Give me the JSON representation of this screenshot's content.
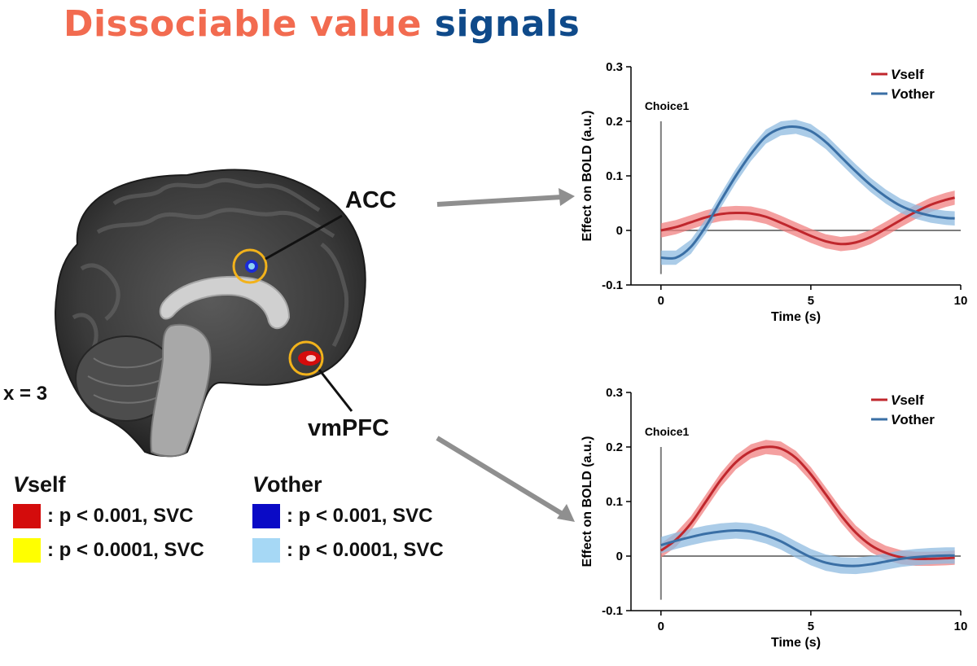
{
  "title": {
    "part1": "Dissociable value",
    "part2": "signals",
    "color1": "#f26b50",
    "color2": "#0f4a8a"
  },
  "brain": {
    "slice_label": "x = 3",
    "regions": [
      {
        "label": "ACC"
      },
      {
        "label": "vmPFC"
      }
    ],
    "highlight_circle_color": "#f2b21b"
  },
  "legend": {
    "groups": [
      {
        "prefix": "V",
        "suffix": "self",
        "rows": [
          {
            "color": "#d40c0c",
            "text": ": p < 0.001, SVC"
          },
          {
            "color": "#ffff00",
            "text": ": p < 0.0001, SVC"
          }
        ]
      },
      {
        "prefix": "V",
        "suffix": "other",
        "rows": [
          {
            "color": "#0a0ac6",
            "text": ": p < 0.001, SVC"
          },
          {
            "color": "#a6d8f5",
            "text": ": p < 0.0001, SVC"
          }
        ]
      }
    ]
  },
  "chart_data": [
    {
      "type": "line",
      "region": "ACC",
      "xlabel": "Time (s)",
      "ylabel": "Effect on BOLD (a.u.)",
      "xlim": [
        -1,
        10
      ],
      "ylim": [
        -0.1,
        0.3
      ],
      "xticks": [
        0,
        5,
        10
      ],
      "yticks": [
        -0.1,
        0,
        0.1,
        0.2,
        0.3
      ],
      "ytick_labels": [
        "-0.1",
        "0",
        "0.1",
        "0.2",
        "0.3"
      ],
      "event": {
        "x": 0,
        "label": "Choice1"
      },
      "legend_position": "top-right",
      "series": [
        {
          "name": "Vself",
          "name_prefix": "V",
          "name_suffix": "self",
          "color": "#c0272d",
          "band_color": "#f08080",
          "x": [
            0,
            0.5,
            1,
            1.5,
            2,
            2.5,
            3,
            3.5,
            4,
            4.5,
            5,
            5.5,
            6,
            6.5,
            7,
            7.5,
            8,
            8.5,
            9,
            9.5,
            9.8
          ],
          "y": [
            0,
            0.006,
            0.015,
            0.024,
            0.03,
            0.032,
            0.031,
            0.025,
            0.014,
            0.002,
            -0.01,
            -0.02,
            -0.025,
            -0.022,
            -0.012,
            0.003,
            0.019,
            0.034,
            0.047,
            0.056,
            0.06
          ],
          "err": 0.013
        },
        {
          "name": "Vother",
          "name_prefix": "V",
          "name_suffix": "other",
          "color": "#3a6fa5",
          "band_color": "#8fbbe0",
          "x": [
            0,
            0.5,
            1,
            1.5,
            2,
            2.5,
            3,
            3.5,
            4,
            4.5,
            5,
            5.5,
            6,
            6.5,
            7,
            7.5,
            8,
            8.5,
            9,
            9.5,
            9.8
          ],
          "y": [
            -0.05,
            -0.05,
            -0.03,
            0.008,
            0.055,
            0.1,
            0.14,
            0.172,
            0.187,
            0.19,
            0.182,
            0.162,
            0.135,
            0.108,
            0.083,
            0.062,
            0.045,
            0.034,
            0.027,
            0.023,
            0.022
          ],
          "err": 0.013
        }
      ]
    },
    {
      "type": "line",
      "region": "vmPFC",
      "xlabel": "Time (s)",
      "ylabel": "Effect on BOLD (a.u.)",
      "xlim": [
        -1,
        10
      ],
      "ylim": [
        -0.1,
        0.3
      ],
      "xticks": [
        0,
        5,
        10
      ],
      "yticks": [
        -0.1,
        0,
        0.1,
        0.2,
        0.3
      ],
      "ytick_labels": [
        "-0.1",
        "0",
        "0.1",
        "0.2",
        "0.3"
      ],
      "event": {
        "x": 0,
        "label": "Choice1"
      },
      "legend_position": "top-right",
      "series": [
        {
          "name": "Vself",
          "name_prefix": "V",
          "name_suffix": "self",
          "color": "#c0272d",
          "band_color": "#f08080",
          "x": [
            0,
            0.5,
            1,
            1.5,
            2,
            2.5,
            3,
            3.5,
            4,
            4.5,
            5,
            5.5,
            6,
            6.5,
            7,
            7.5,
            8,
            8.5,
            9,
            9.5,
            9.8
          ],
          "y": [
            0.01,
            0.03,
            0.06,
            0.1,
            0.14,
            0.172,
            0.192,
            0.2,
            0.197,
            0.18,
            0.15,
            0.113,
            0.075,
            0.043,
            0.02,
            0.006,
            -0.002,
            -0.005,
            -0.005,
            -0.004,
            -0.003
          ],
          "err": 0.013
        },
        {
          "name": "Vother",
          "name_prefix": "V",
          "name_suffix": "other",
          "color": "#3a6fa5",
          "band_color": "#8fbbe0",
          "x": [
            0,
            0.5,
            1,
            1.5,
            2,
            2.5,
            3,
            3.5,
            4,
            4.5,
            5,
            5.5,
            6,
            6.5,
            7,
            7.5,
            8,
            8.5,
            9,
            9.5,
            9.8
          ],
          "y": [
            0.02,
            0.028,
            0.035,
            0.041,
            0.045,
            0.047,
            0.045,
            0.038,
            0.027,
            0.012,
            -0.002,
            -0.012,
            -0.017,
            -0.018,
            -0.015,
            -0.01,
            -0.005,
            -0.002,
            0,
            0.001,
            0.001
          ],
          "err": 0.015
        }
      ]
    }
  ]
}
